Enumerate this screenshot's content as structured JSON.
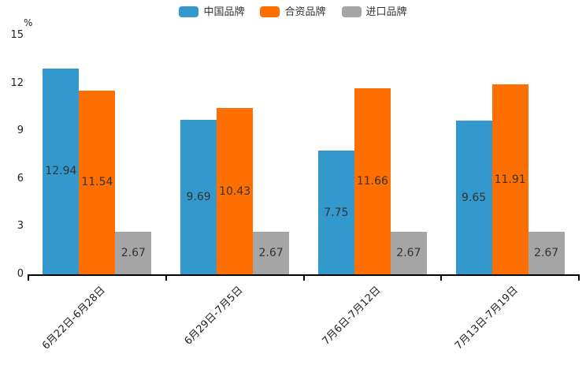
{
  "unit_label": "%",
  "colors": {
    "china_brand": "#3398cc",
    "joint_venture_brand": "#ff6e00",
    "import_brand": "#a5a5a5",
    "axis": "#000000",
    "text": "#333333"
  },
  "legend": {
    "items": [
      {
        "label": "中国品牌",
        "color": "#3398cc"
      },
      {
        "label": "合资品牌",
        "color": "#ff6e00"
      },
      {
        "label": "进口品牌",
        "color": "#a5a5a5"
      }
    ]
  },
  "chart_data": {
    "type": "bar",
    "categories": [
      "6月22日-6月28日",
      "6月29日-7月5日",
      "7月6日-7月12日",
      "7月13日-7月19日"
    ],
    "series": [
      {
        "name": "中国品牌",
        "color": "#3398cc",
        "values": [
          12.94,
          9.69,
          7.75,
          9.65
        ]
      },
      {
        "name": "合资品牌",
        "color": "#ff6e00",
        "values": [
          11.54,
          10.43,
          11.66,
          11.91
        ]
      },
      {
        "name": "进口品牌",
        "color": "#a5a5a5",
        "values": [
          2.67,
          2.67,
          2.67,
          2.67
        ]
      }
    ],
    "title": "",
    "xlabel": "",
    "ylabel": "%",
    "ylim": [
      0,
      15
    ],
    "yticks": [
      0,
      3,
      6,
      9,
      12,
      15
    ],
    "grid": false,
    "legend_position": "top",
    "bar_value_labels": "inside-center",
    "x_label_rotation": -45
  }
}
